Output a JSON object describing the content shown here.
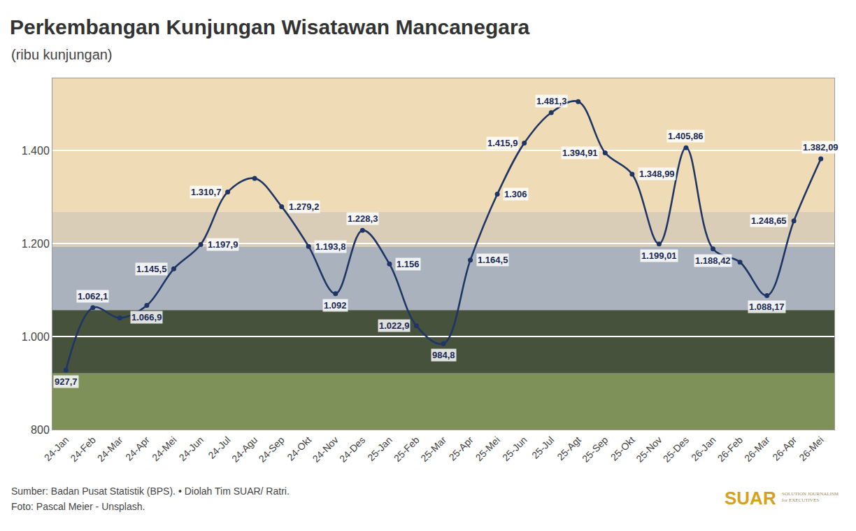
{
  "chart_data": {
    "type": "line",
    "title": "Perkembangan Kunjungan Wisatawan Mancanegara",
    "subtitle": "(ribu kunjungan)",
    "categories": [
      "24-Jan",
      "24-Feb",
      "24-Mar",
      "24-Apr",
      "24-Mei",
      "24-Jun",
      "24-Jul",
      "24-Agu",
      "24-Sep",
      "24-Okt",
      "24-Nov",
      "24-Des",
      "25-Jan",
      "25-Feb",
      "25-Mar",
      "25-Apr",
      "25-Mei",
      "25-Jun",
      "25-Jul",
      "25-Agt",
      "25-Sep",
      "25-Okt",
      "25-Nov",
      "25-Des",
      "26-Jan",
      "26-Feb",
      "26-Mar",
      "26-Apr",
      "26-Mei"
    ],
    "values": [
      927.7,
      1062.1,
      1040,
      1066.9,
      1145.5,
      1197.9,
      1310.7,
      1340,
      1279.2,
      1193.8,
      1092,
      1228.3,
      1156,
      1022.9,
      984.8,
      1164.5,
      1306,
      1415.9,
      1481.3,
      1505,
      1394.91,
      1348.99,
      1199.01,
      1405.86,
      1188.42,
      1160,
      1088.17,
      1248.65,
      1382.09
    ],
    "value_labels": [
      "927,7",
      "1.062,1",
      null,
      "1.066,9",
      "1.145,5",
      "1.197,9",
      "1.310,7",
      null,
      "1.279,2",
      "1.193,8",
      "1.092",
      "1.228,3",
      "1.156",
      "1.022,9",
      "984,8",
      "1.164,5",
      "1.306",
      "1.415,9",
      "1.481,3",
      null,
      "1.394,91",
      "1.348,99",
      "1.199,01",
      "1.405,86",
      "1.188,42",
      null,
      "1.088,17",
      "1.248,65",
      "1.382,09"
    ],
    "data_labels": true,
    "color": "#1f3566",
    "marker": "circle",
    "line_style": "solid",
    "ylim": [
      800,
      1555
    ],
    "yticks": [
      800,
      {
        "value": 1000,
        "label": "1.000"
      },
      {
        "value": 1200,
        "label": "1.200"
      },
      {
        "value": 1400,
        "label": "1.400"
      }
    ],
    "grid": true,
    "source": "Sumber: Badan Pusat Statistik (BPS). • Diolah Tim SUAR/ Ratri.",
    "photo_credit": "Foto: Pascal Meier - Unsplash.",
    "logo": "SUAR",
    "logo_tagline": [
      "SOLUTION JOURNALISM",
      "for EXECUTIVES"
    ]
  }
}
